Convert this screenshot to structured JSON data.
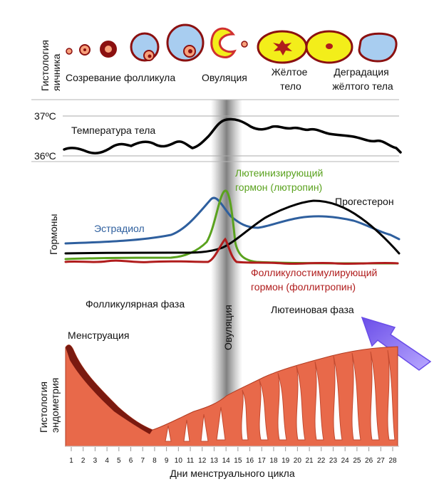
{
  "ovary": {
    "axis_label_line1": "Гистология",
    "axis_label_line2": "яичника",
    "stage_maturation": "Созревание фолликула",
    "stage_ovulation": "Овуляция",
    "stage_corpus_luteum_line1": "Жёлтое",
    "stage_corpus_luteum_line2": "тело",
    "stage_degradation_line1": "Деградация",
    "stage_degradation_line2": "жёлтого тела"
  },
  "temperature": {
    "tick_high": "37ºC",
    "tick_low": "36ºC",
    "title": "Температура тела"
  },
  "hormones": {
    "axis_label": "Гормоны",
    "lh_line1": "Лютеинизирующий",
    "lh_line2": "гормон (лютропин)",
    "progesterone": "Прогестерон",
    "estradiol": "Эстрадиол",
    "fsh_line1": "Фолликулостимулирующий",
    "fsh_line2": "гормон (фоллитропин)"
  },
  "phases": {
    "follicular": "Фолликулярная фаза",
    "ovulation": "Овуляция",
    "luteal": "Лютеиновая фаза"
  },
  "endometrium": {
    "axis_label_line1": "Гистология",
    "axis_label_line2": "эндометрия",
    "menstruation": "Менструация"
  },
  "days_axis": {
    "label": "Дни менструального цикла",
    "days": [
      "1",
      "2",
      "3",
      "4",
      "5",
      "6",
      "7",
      "8",
      "9",
      "10",
      "11",
      "12",
      "13",
      "14",
      "15",
      "16",
      "17",
      "18",
      "19",
      "20",
      "21",
      "22",
      "23",
      "24",
      "25",
      "26",
      "27",
      "28"
    ]
  },
  "colors": {
    "estradiol": "#2e5f9e",
    "lh": "#5aa21e",
    "fsh": "#b01c1c",
    "progesterone": "#000000",
    "temperature": "#000000",
    "endometrium": "#e8694a",
    "endometrium_dark": "#7a1a10",
    "follicle_fill": "#f7a07a",
    "follicle_dark": "#8b1010",
    "oocyte_blue": "#a8cdf0",
    "corpus_luteum": "#f3ee1a",
    "corpus_luteum_core": "#b01c1c",
    "ovulation_band": "#8c8c8c",
    "arrow": "#8a6df0"
  }
}
